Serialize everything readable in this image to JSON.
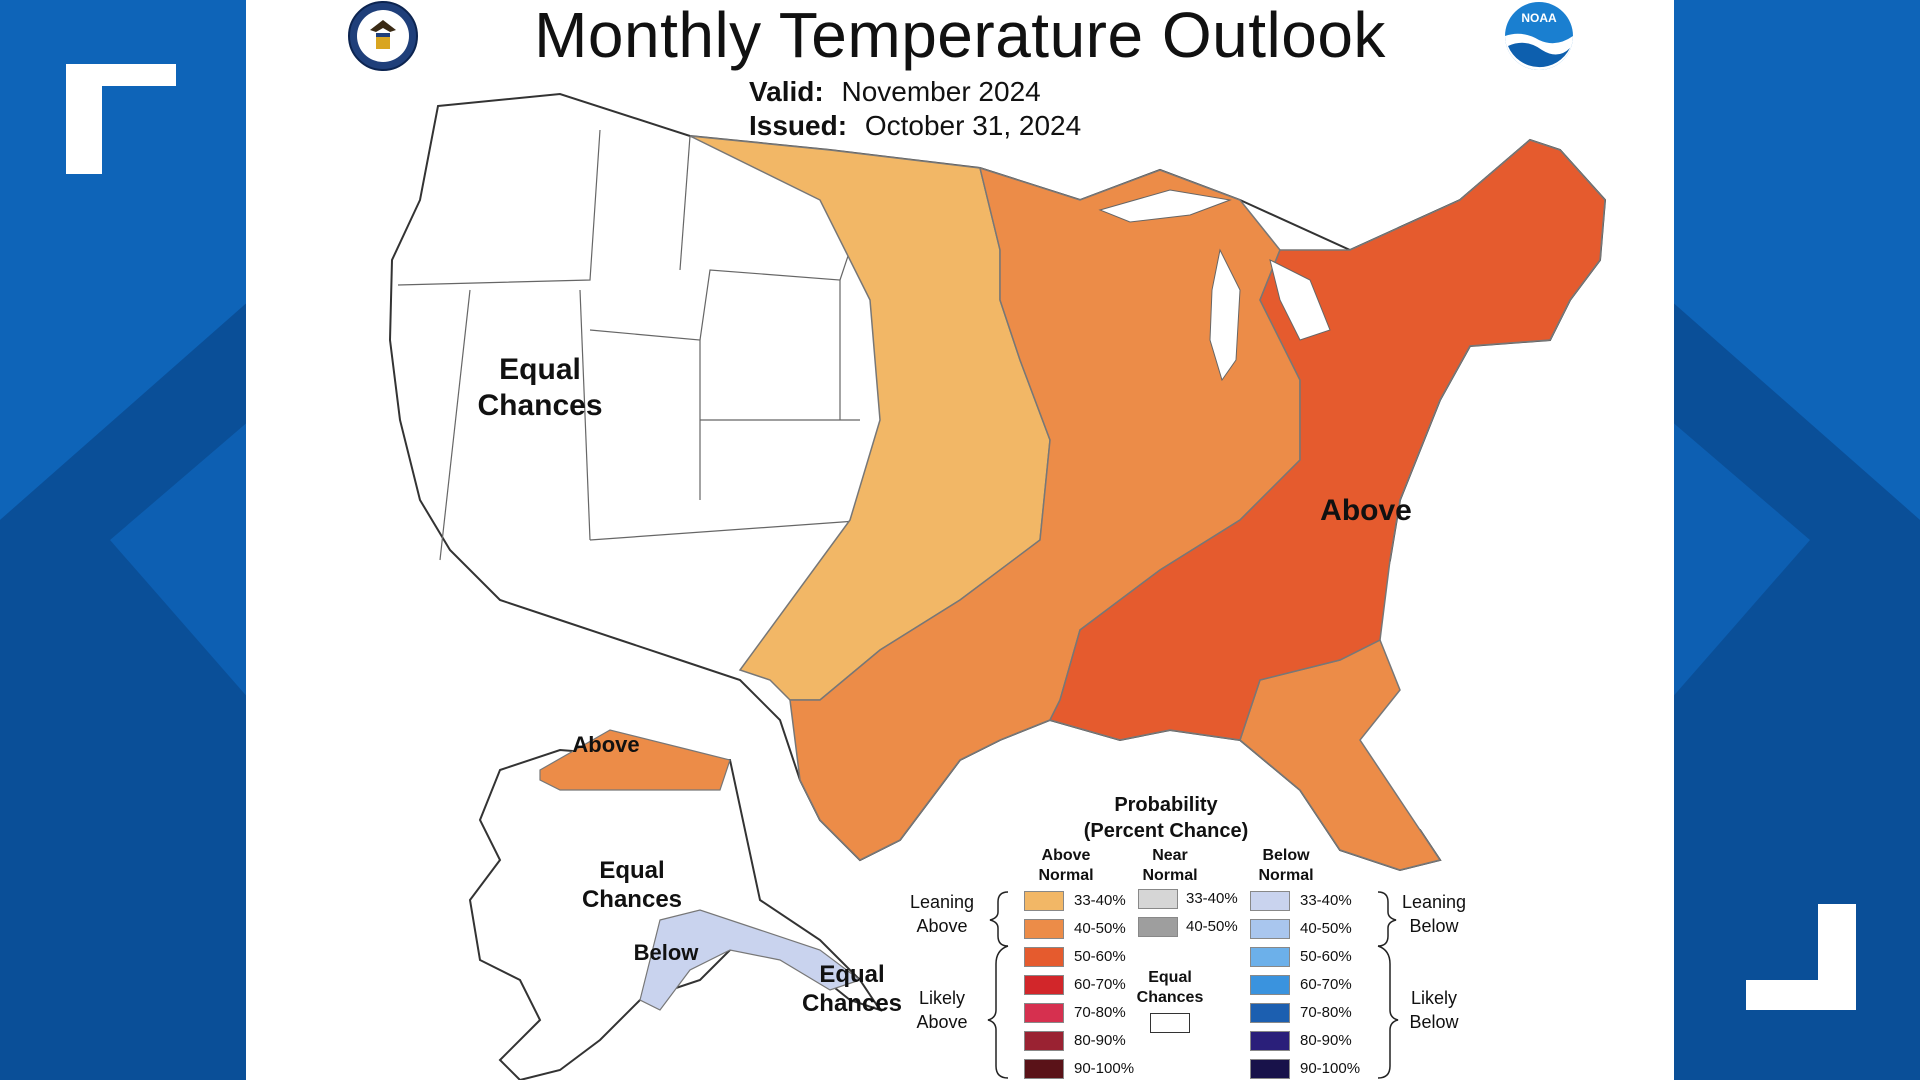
{
  "title": "Monthly Temperature Outlook",
  "valid": {
    "label": "Valid:",
    "value": "November 2024"
  },
  "issued": {
    "label": "Issued:",
    "value": "October 31, 2024"
  },
  "map_labels": {
    "equal_chances_1": "Equal",
    "equal_chances_2": "Chances",
    "above_conus": "Above",
    "above_alaska": "Above",
    "below_alaska": "Below",
    "ak_equal_1": "Equal",
    "ak_equal_2": "Chances",
    "se_equal_1": "Equal",
    "se_equal_2": "Chances"
  },
  "legend": {
    "title_1": "Probability",
    "title_2": "(Percent Chance)",
    "col_above_1": "Above",
    "col_above_2": "Normal",
    "col_near_1": "Near",
    "col_near_2": "Normal",
    "col_below_1": "Below",
    "col_below_2": "Normal",
    "leaning_above_1": "Leaning",
    "leaning_above_2": "Above",
    "likely_above_1": "Likely",
    "likely_above_2": "Above",
    "leaning_below_1": "Leaning",
    "leaning_below_2": "Below",
    "likely_below_1": "Likely",
    "likely_below_2": "Below",
    "equal_1": "Equal",
    "equal_2": "Chances",
    "above_items": [
      {
        "label": "33-40%",
        "color": "#f2b766"
      },
      {
        "label": "40-50%",
        "color": "#ec8c48"
      },
      {
        "label": "50-60%",
        "color": "#e55b2e"
      },
      {
        "label": "60-70%",
        "color": "#d2262a"
      },
      {
        "label": "70-80%",
        "color": "#d6304f"
      },
      {
        "label": "80-90%",
        "color": "#9a2232"
      },
      {
        "label": "90-100%",
        "color": "#5a1218"
      }
    ],
    "near_items": [
      {
        "label": "33-40%",
        "color": "#d6d6d6"
      },
      {
        "label": "40-50%",
        "color": "#9e9e9e"
      }
    ],
    "below_items": [
      {
        "label": "33-40%",
        "color": "#c9d3ee"
      },
      {
        "label": "40-50%",
        "color": "#a9c6ee"
      },
      {
        "label": "50-60%",
        "color": "#6cb0ea"
      },
      {
        "label": "60-70%",
        "color": "#3a93de"
      },
      {
        "label": "70-80%",
        "color": "#1c5fb0"
      },
      {
        "label": "80-90%",
        "color": "#2a1f7a"
      },
      {
        "label": "90-100%",
        "color": "#18124a"
      }
    ]
  },
  "colors": {
    "bg_blue": "#0a5aa8",
    "lean_above": "#f2b766",
    "above_40": "#ec8c48",
    "above_50": "#e55b2e",
    "lean_below": "#c9d3ee"
  }
}
